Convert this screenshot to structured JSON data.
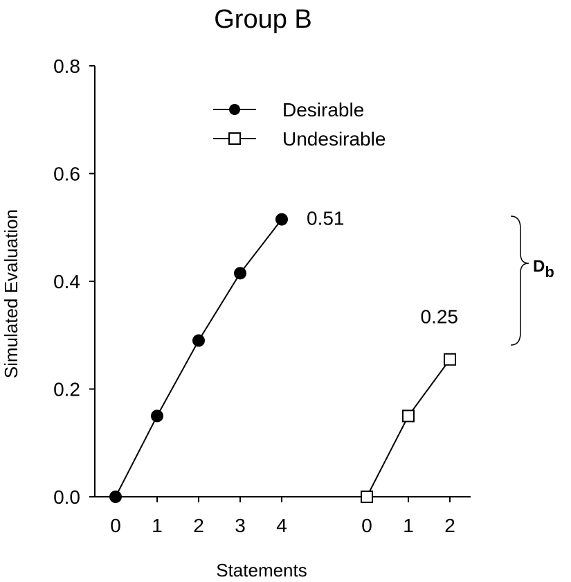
{
  "chart_data": {
    "type": "line",
    "title": "Group B",
    "xlabel": "Statements",
    "ylabel": "Simulated Evaluation",
    "ylim": [
      0,
      0.8
    ],
    "yticks": [
      "0.0",
      "0.2",
      "0.4",
      "0.6",
      "0.8"
    ],
    "grid": false,
    "legend_position": "top-center",
    "series": [
      {
        "name": "Desirable",
        "marker": "filled-circle",
        "x": [
          0,
          1,
          2,
          3,
          4
        ],
        "x_tick_labels": [
          "0",
          "1",
          "2",
          "3",
          "4"
        ],
        "y": [
          0.0,
          0.15,
          0.29,
          0.415,
          0.515
        ],
        "end_label": "0.51"
      },
      {
        "name": "Undesirable",
        "marker": "open-square",
        "x": [
          0,
          1,
          2
        ],
        "x_tick_labels": [
          "0",
          "1",
          "2"
        ],
        "y": [
          0.0,
          0.15,
          0.255
        ],
        "end_label": "0.25"
      }
    ],
    "annotation": {
      "type": "brace",
      "label_main": "D",
      "label_sub": "b",
      "from_value": 0.25,
      "to_value": 0.51
    }
  }
}
